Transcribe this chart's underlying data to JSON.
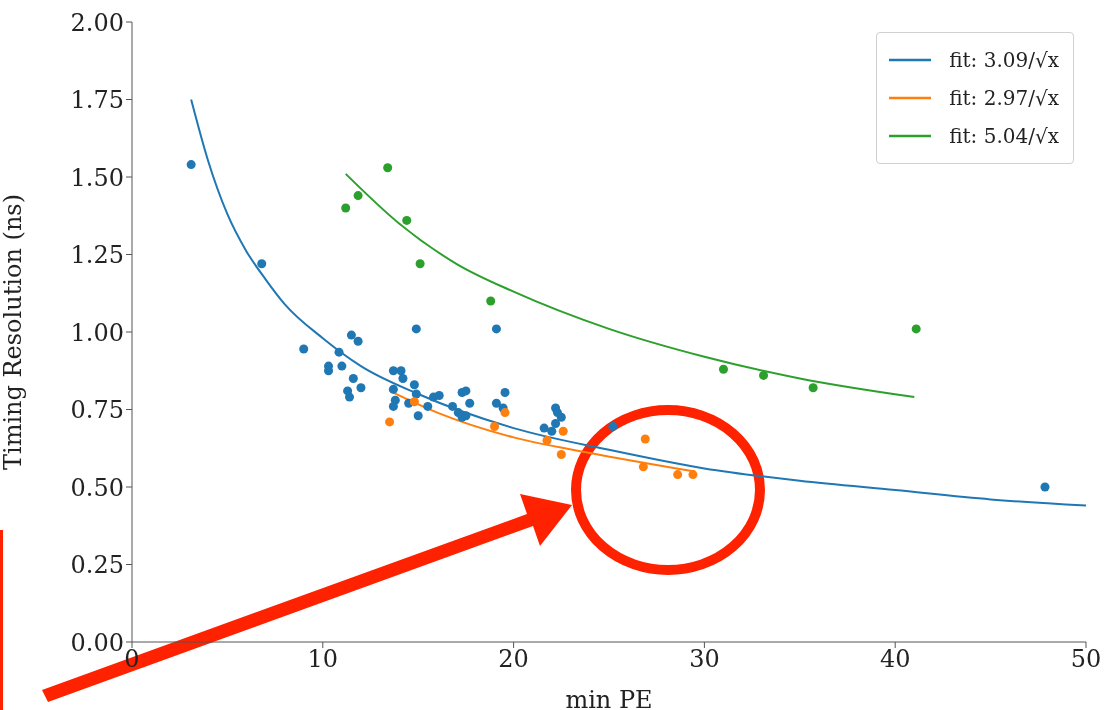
{
  "chart_data": {
    "type": "scatter",
    "xlabel": "min PE",
    "ylabel": "Timing Resolution (ns)",
    "xlim": [
      0,
      50
    ],
    "xticks": [
      0,
      10,
      20,
      30,
      40,
      50
    ],
    "ylim": [
      0,
      2
    ],
    "yticks": [
      {
        "value": 0,
        "label": "0.00"
      },
      {
        "value": 0.25,
        "label": "0.25"
      },
      {
        "value": 0.5,
        "label": "0.50"
      },
      {
        "value": 0.75,
        "label": "0.75"
      },
      {
        "value": 1,
        "label": "1.00"
      },
      {
        "value": 1.25,
        "label": "1.25"
      },
      {
        "value": 1.5,
        "label": "1.50"
      },
      {
        "value": 1.75,
        "label": "1.75"
      },
      {
        "value": 2,
        "label": "2.00"
      }
    ],
    "grid": false,
    "legend": "top right",
    "marker": "circle",
    "series": [
      {
        "type": "line",
        "marker": "none",
        "name": "fit: 3.09/√x",
        "color": "#1f77b4",
        "x": [
          3.1,
          4,
          5,
          6,
          7,
          8,
          10,
          12,
          15,
          20,
          25,
          30,
          35,
          40,
          45,
          50
        ],
        "values": [
          1.75,
          1.55,
          1.38,
          1.26,
          1.17,
          1.09,
          0.98,
          0.89,
          0.8,
          0.69,
          0.62,
          0.56,
          0.52,
          0.49,
          0.46,
          0.44
        ]
      },
      {
        "color": "#1f77b4",
        "x": [
          3.1,
          6.8,
          9.0,
          10.85,
          11.5,
          11.85,
          10.3,
          10.3,
          11.0,
          11.6,
          12.0,
          11.3,
          11.4,
          13.7,
          14.1,
          14.2,
          13.7,
          13.8,
          13.7,
          14.8,
          14.9,
          14.5,
          15.0,
          14.9,
          19.1,
          15.5,
          15.8,
          16.1,
          16.8,
          17.1,
          17.3,
          17.5,
          17.3,
          17.5,
          17.7,
          19.1,
          19.45,
          19.55,
          21.6,
          22.0,
          22.2,
          22.3,
          22.5,
          22.2,
          25.2,
          47.85
        ],
        "values": [
          1.54,
          1.22,
          0.945,
          0.935,
          0.99,
          0.97,
          0.89,
          0.875,
          0.89,
          0.85,
          0.82,
          0.81,
          0.79,
          0.875,
          0.875,
          0.85,
          0.815,
          0.78,
          0.76,
          0.83,
          0.8,
          0.77,
          0.73,
          1.01,
          1.01,
          0.76,
          0.79,
          0.795,
          0.76,
          0.74,
          0.725,
          0.73,
          0.805,
          0.81,
          0.77,
          0.77,
          0.755,
          0.805,
          0.69,
          0.68,
          0.755,
          0.74,
          0.725,
          0.705,
          0.695,
          0.5
        ]
      },
      {
        "type": "line",
        "marker": "none",
        "name": "fit: 2.97/√x",
        "color": "#ff7f0e",
        "x": [
          13.5,
          16,
          20,
          24,
          29.5
        ],
        "values": [
          0.81,
          0.74,
          0.66,
          0.61,
          0.55
        ]
      },
      {
        "color": "#ff7f0e",
        "x": [
          13.5,
          14.8,
          19.0,
          19.55,
          21.75,
          22.6,
          22.5,
          26.9,
          26.8,
          28.6,
          29.4
        ],
        "values": [
          0.71,
          0.775,
          0.695,
          0.74,
          0.65,
          0.68,
          0.605,
          0.655,
          0.565,
          0.54,
          0.54
        ]
      },
      {
        "type": "line",
        "marker": "none",
        "name": "fit: 5.04/√x",
        "color": "#2ca02c",
        "x": [
          11.2,
          14,
          17,
          20,
          25,
          30,
          35,
          41
        ],
        "values": [
          1.51,
          1.35,
          1.22,
          1.13,
          1.01,
          0.92,
          0.85,
          0.79
        ]
      },
      {
        "color": "#2ca02c",
        "x": [
          13.4,
          11.2,
          11.85,
          14.4,
          15.1,
          18.8,
          31.0,
          33.1,
          35.7,
          41.1
        ],
        "values": [
          1.53,
          1.4,
          1.44,
          1.36,
          1.22,
          1.1,
          0.88,
          0.86,
          0.82,
          1.01
        ]
      }
    ]
  }
}
